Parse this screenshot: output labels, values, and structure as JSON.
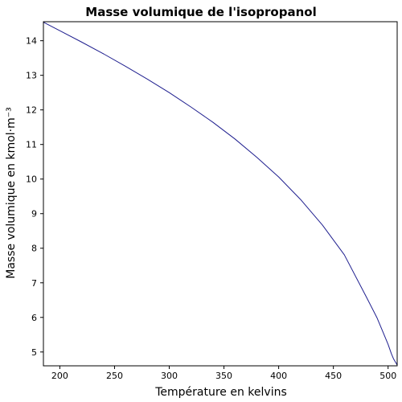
{
  "chart_data": {
    "type": "line",
    "title": "Masse volumique de l'isopropanol",
    "xlabel": "Température en kelvins",
    "ylabel": "Masse volumique en kmol·m⁻³",
    "xlim": [
      185,
      508.3
    ],
    "ylim": [
      4.6,
      14.55
    ],
    "xticks": [
      200,
      250,
      300,
      350,
      400,
      450,
      500
    ],
    "yticks": [
      5,
      6,
      7,
      8,
      9,
      10,
      11,
      12,
      13,
      14
    ],
    "grid": false,
    "legend": "none",
    "series": [
      {
        "color": "#1f1f8f",
        "x": [
          185.3,
          200,
          220,
          240,
          260,
          280,
          300,
          320,
          340,
          360,
          380,
          400,
          420,
          440,
          460,
          480,
          490,
          495,
          500,
          503,
          505,
          506.5,
          507.5,
          508
        ],
        "y": [
          14.53,
          14.29,
          13.96,
          13.62,
          13.26,
          12.89,
          12.5,
          12.08,
          11.64,
          11.16,
          10.63,
          10.06,
          9.41,
          8.67,
          7.81,
          6.6,
          5.98,
          5.6,
          5.22,
          4.95,
          4.8,
          4.72,
          4.67,
          4.63
        ]
      }
    ]
  }
}
